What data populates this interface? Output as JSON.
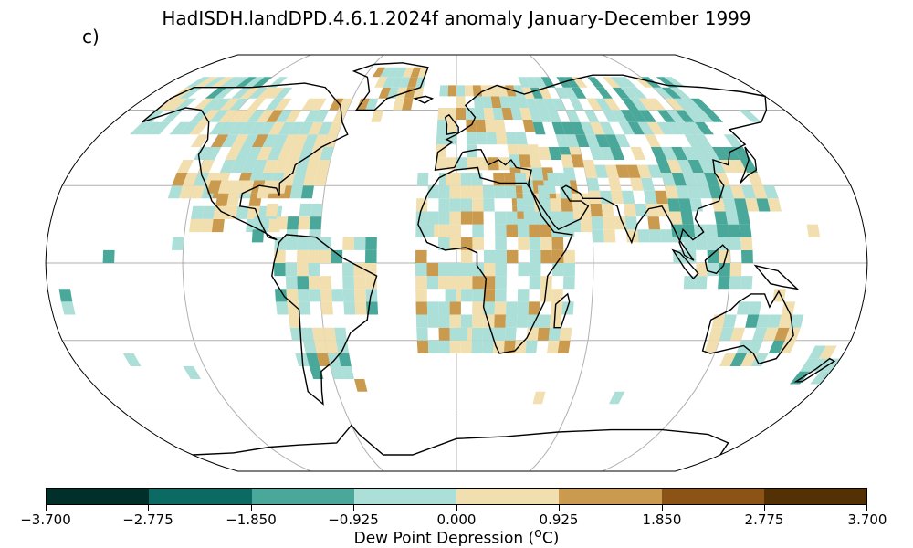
{
  "title": "HadISDH.landDPD.4.6.1.2024f anomaly January-December 1999",
  "panel_label": "c)",
  "colorbar": {
    "label_prefix": "Dew Point Depression (",
    "label_sup": "o",
    "label_suffix": "C)",
    "ticks": [
      "−3.700",
      "−2.775",
      "−1.850",
      "−0.925",
      "0.000",
      "0.925",
      "1.850",
      "2.775",
      "3.700"
    ],
    "colors": [
      "#01302a",
      "#0b6b62",
      "#4aa89a",
      "#acdfd8",
      "#f2dfb0",
      "#ca9a4f",
      "#8b5416",
      "#543005"
    ]
  },
  "map": {
    "projection": "robinson",
    "gridlines": true,
    "land_outline_color": "#000000",
    "no_data_color": "#ffffff"
  }
}
